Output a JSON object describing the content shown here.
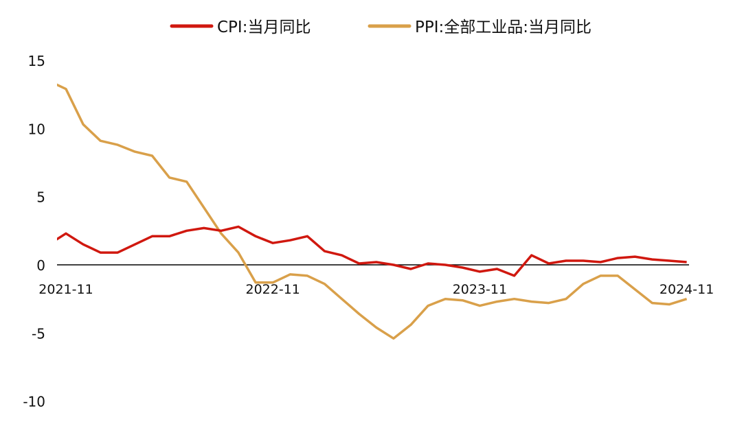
{
  "chart_data": {
    "type": "line",
    "title": "",
    "xlabel": "",
    "ylabel": "",
    "x": [
      "2021-10",
      "2021-11",
      "2021-12",
      "2022-01",
      "2022-02",
      "2022-03",
      "2022-04",
      "2022-05",
      "2022-06",
      "2022-07",
      "2022-08",
      "2022-09",
      "2022-10",
      "2022-11",
      "2022-12",
      "2023-01",
      "2023-02",
      "2023-03",
      "2023-04",
      "2023-05",
      "2023-06",
      "2023-07",
      "2023-08",
      "2023-09",
      "2023-10",
      "2023-11",
      "2023-12",
      "2024-01",
      "2024-02",
      "2024-03",
      "2024-04",
      "2024-05",
      "2024-06",
      "2024-07",
      "2024-08",
      "2024-09",
      "2024-10",
      "2024-11"
    ],
    "x_tick_labels": [
      "2021-11",
      "2022-11",
      "2023-11",
      "2024-11"
    ],
    "y_ticks": [
      15,
      10,
      5,
      0,
      -5,
      -10
    ],
    "y_tick_labels": [
      "15",
      "10",
      "5",
      "0",
      "-5",
      "-10"
    ],
    "ylim": [
      -10,
      15
    ],
    "grid": false,
    "legend_position": "top-center",
    "series": [
      {
        "name": "CPI:当月同比",
        "color": "#d0180f",
        "values": [
          1.5,
          2.3,
          1.5,
          0.9,
          0.9,
          1.5,
          2.1,
          2.1,
          2.5,
          2.7,
          2.5,
          2.8,
          2.1,
          1.6,
          1.8,
          2.1,
          1.0,
          0.7,
          0.1,
          0.2,
          0.0,
          -0.3,
          0.1,
          0.0,
          -0.2,
          -0.5,
          -0.3,
          -0.8,
          0.7,
          0.1,
          0.3,
          0.3,
          0.2,
          0.5,
          0.6,
          0.4,
          0.3,
          0.2
        ]
      },
      {
        "name": "PPI:全部工业品:当月同比",
        "color": "#d9a04a",
        "values": [
          13.5,
          12.9,
          10.3,
          9.1,
          8.8,
          8.3,
          8.0,
          6.4,
          6.1,
          4.2,
          2.3,
          0.9,
          -1.3,
          -1.3,
          -0.7,
          -0.8,
          -1.4,
          -2.5,
          -3.6,
          -4.6,
          -5.4,
          -4.4,
          -3.0,
          -2.5,
          -2.6,
          -3.0,
          -2.7,
          -2.5,
          -2.7,
          -2.8,
          -2.5,
          -1.4,
          -0.8,
          -0.8,
          -1.8,
          -2.8,
          -2.9,
          -2.5
        ]
      }
    ]
  }
}
